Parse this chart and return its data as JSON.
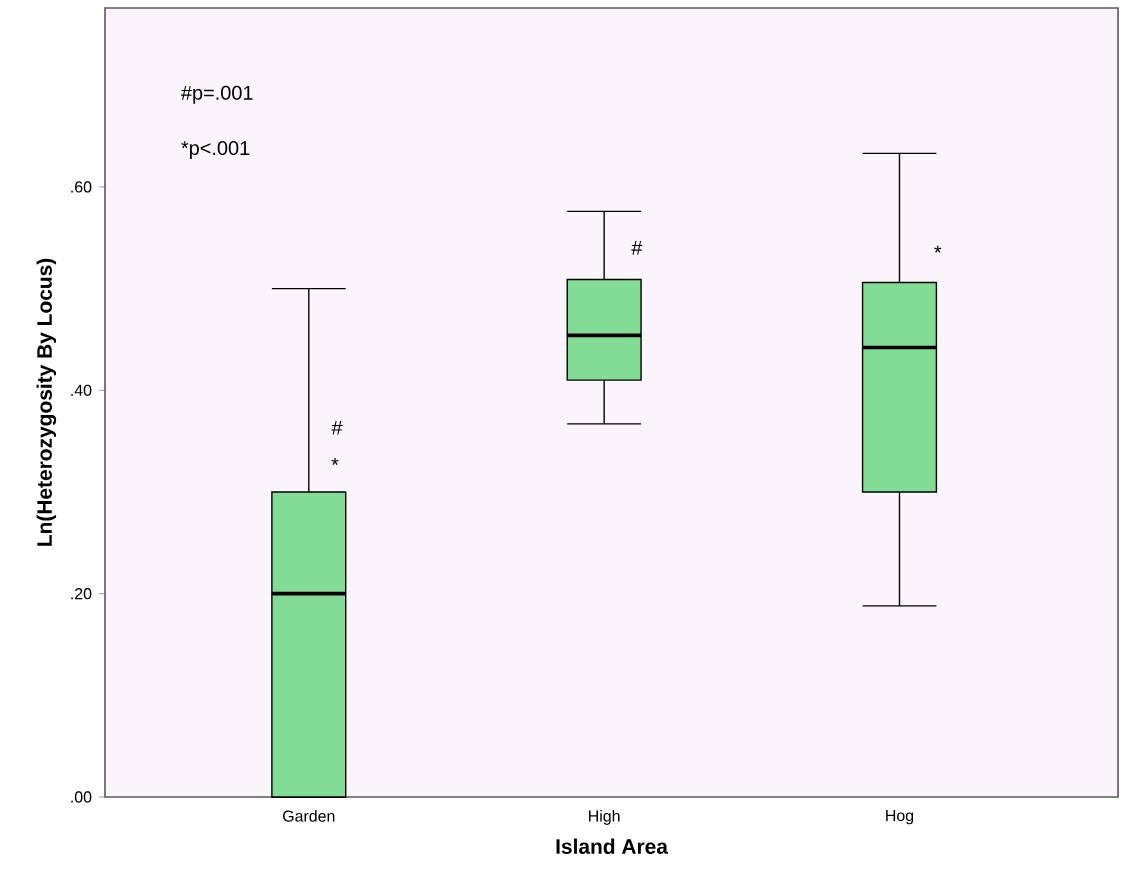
{
  "chart_data": {
    "type": "box",
    "xlabel": "Island Area",
    "ylabel": "Ln(Heterozygosity By Locus)",
    "categories": [
      "Garden",
      "High",
      "Hog"
    ],
    "color": "#82dc96",
    "boxes": [
      {
        "low": 0,
        "q1": 0,
        "median": 0.2,
        "q3": 0.3,
        "high": 0.5
      },
      {
        "low": 0.367,
        "q1": 0.41,
        "median": 0.454,
        "q3": 0.509,
        "high": 0.576
      },
      {
        "low": 0.188,
        "q1": 0.3,
        "median": 0.442,
        "q3": 0.506,
        "high": 0.633
      }
    ],
    "ylim": [
      0,
      0.776
    ],
    "yticks": [
      {
        "value": 0,
        "label": ".00"
      },
      {
        "value": 0.2,
        "label": ".20"
      },
      {
        "value": 0.4,
        "label": ".40"
      },
      {
        "value": 0.6,
        "label": ".60"
      }
    ],
    "annotations": [
      "#p=.001",
      "*p<.001",
      "#",
      "*",
      "#",
      "*"
    ]
  }
}
